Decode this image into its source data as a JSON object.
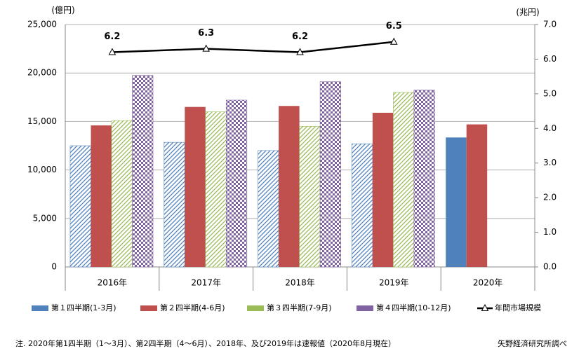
{
  "chart_data": {
    "type": "bar",
    "y_label": "(億円)",
    "y2_label": "(兆円)",
    "categories": [
      "2016年",
      "2017年",
      "2018年",
      "2019年",
      "2020年"
    ],
    "series": [
      {
        "name": "第１四半期(1-3月)",
        "color": "#4f81bd",
        "patterns": [
          "hatch",
          "hatch",
          "hatch",
          "hatch",
          "solid"
        ],
        "values": [
          12500,
          12850,
          12000,
          12700,
          13350
        ]
      },
      {
        "name": "第２四半期(4-6月)",
        "color": "#c0504d",
        "patterns": [
          "solid",
          "solid",
          "solid",
          "solid",
          "solid"
        ],
        "values": [
          14600,
          16500,
          16600,
          15900,
          14700
        ]
      },
      {
        "name": "第３四半期(7-9月)",
        "color": "#9bbb59",
        "patterns": [
          "hatch",
          "hatch",
          "hatch",
          "hatch",
          "hatch"
        ],
        "values": [
          15100,
          16000,
          14500,
          18000,
          null
        ]
      },
      {
        "name": "第４四半期(10-12月)",
        "color": "#8064a2",
        "patterns": [
          "check",
          "check",
          "check",
          "check",
          "check"
        ],
        "values": [
          19750,
          17200,
          19100,
          18250,
          null
        ]
      },
      {
        "name": "年間市場規模",
        "color": "#000000",
        "type": "line",
        "axis": "y2",
        "values": [
          6.2,
          6.3,
          6.2,
          6.5,
          null
        ],
        "value_labels": [
          "6.2",
          "6.3",
          "6.2",
          "6.5",
          null
        ]
      }
    ],
    "ylim": [
      0,
      25000
    ],
    "yticks": [
      0,
      {
        "value": 5000,
        "label": "5,000"
      },
      {
        "value": 10000,
        "label": "10,000"
      },
      {
        "value": 15000,
        "label": "15,000"
      },
      {
        "value": 20000,
        "label": "20,000"
      },
      {
        "value": 25000,
        "label": "25,000"
      }
    ],
    "y2lim": [
      0,
      7
    ],
    "y2ticks": [
      {
        "value": 0,
        "label": "0.0"
      },
      {
        "value": 1,
        "label": "1.0"
      },
      {
        "value": 2,
        "label": "2.0"
      },
      {
        "value": 3,
        "label": "3.0"
      },
      {
        "value": 4,
        "label": "4.0"
      },
      {
        "value": 5,
        "label": "5.0"
      },
      {
        "value": 6,
        "label": "6.0"
      },
      {
        "value": 7,
        "label": "7.0"
      }
    ],
    "grid": true,
    "note": "注. 2020年第1四半期（1～3月）、第2四半期（4～6月）、2018年、及び2019年は速報値（2020年8月現在）",
    "source": "矢野経済研究所調べ"
  }
}
